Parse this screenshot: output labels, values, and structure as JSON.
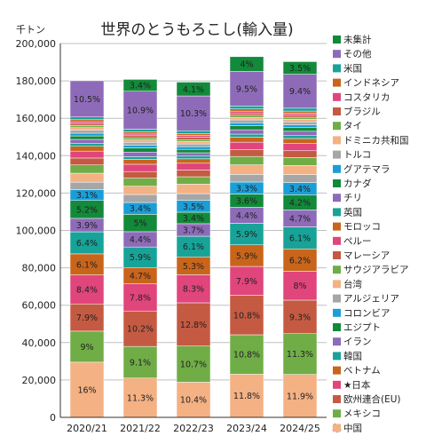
{
  "chart_data": {
    "type": "bar",
    "stacked": true,
    "title": "世界のとうもろこし(輸入量)",
    "unit": "千トン",
    "xunit": "年",
    "ylim": [
      0,
      200000
    ],
    "yticks": [
      "0",
      "20,000",
      "40,000",
      "60,000",
      "80,000",
      "100,000",
      "120,000",
      "140,000",
      "160,000",
      "180,000",
      "200,000"
    ],
    "grid": true,
    "legend_position": "right",
    "categories": [
      "2020/21",
      "2021/22",
      "2022/23",
      "2023/24",
      "2024/25"
    ],
    "totals": [
      184500,
      186000,
      180800,
      195500,
      193000
    ],
    "series": [
      {
        "name": "中国",
        "color": "#f4b183",
        "percent": [
          16,
          11.3,
          10.4,
          11.8,
          11.9
        ],
        "show_label": true
      },
      {
        "name": "メキシコ",
        "color": "#70ad47",
        "percent": [
          9,
          9.1,
          10.7,
          10.8,
          11.3
        ],
        "show_label": true
      },
      {
        "name": "欧州連合(EU)",
        "color": "#c55a42",
        "percent": [
          7.9,
          10.2,
          12.8,
          10.8,
          9.3
        ],
        "show_label": true
      },
      {
        "name": "★日本",
        "color": "#e0457b",
        "percent": [
          8.4,
          7.8,
          8.3,
          7.9,
          8
        ],
        "show_label": true
      },
      {
        "name": "ベトナム",
        "color": "#c8651b",
        "percent": [
          6.1,
          4.7,
          5.3,
          5.9,
          6.2
        ],
        "show_label": true
      },
      {
        "name": "韓国",
        "color": "#17a398",
        "percent": [
          6.4,
          5.9,
          6.1,
          5.9,
          6.1
        ],
        "show_label": true
      },
      {
        "name": "イラン",
        "color": "#8e6bb8",
        "percent": [
          3.9,
          4.4,
          3.7,
          4.4,
          4.7
        ],
        "show_label": true
      },
      {
        "name": "エジプト",
        "color": "#128a3a",
        "percent": [
          5.2,
          5,
          3.4,
          3.6,
          4.2
        ],
        "show_label": true
      },
      {
        "name": "コロンビア",
        "color": "#1a9ed8",
        "percent": [
          3.1,
          3.4,
          3.5,
          3.3,
          3.4
        ],
        "show_label": true
      },
      {
        "name": "アルジェリア",
        "color": "#a6a6a6",
        "percent": [
          2.2,
          2.3,
          2.0,
          2.1,
          2.2
        ],
        "show_label": false
      },
      {
        "name": "台湾",
        "color": "#f4b183",
        "percent": [
          2.6,
          2.4,
          2.8,
          2.6,
          2.5
        ],
        "show_label": false
      },
      {
        "name": "サウジアラビア",
        "color": "#70ad47",
        "percent": [
          2.4,
          2.3,
          2.2,
          2.3,
          2.2
        ],
        "show_label": false
      },
      {
        "name": "マレーシア",
        "color": "#c55a42",
        "percent": [
          2.0,
          1.9,
          2.0,
          1.9,
          1.9
        ],
        "show_label": false
      },
      {
        "name": "ペルー",
        "color": "#e0457b",
        "percent": [
          2.0,
          2.1,
          2.0,
          2.0,
          2.0
        ],
        "show_label": false
      },
      {
        "name": "モロッコ",
        "color": "#c8651b",
        "percent": [
          1.4,
          1.4,
          1.3,
          1.4,
          1.4
        ],
        "show_label": false
      },
      {
        "name": "英国",
        "color": "#17a398",
        "percent": [
          0.8,
          0.8,
          0.8,
          0.8,
          0.8
        ],
        "show_label": false
      },
      {
        "name": "チリ",
        "color": "#8e6bb8",
        "percent": [
          1.2,
          1.3,
          1.0,
          1.2,
          1.2
        ],
        "show_label": false
      },
      {
        "name": "カナダ",
        "color": "#128a3a",
        "percent": [
          1.0,
          1.2,
          1.0,
          1.1,
          1.0
        ],
        "show_label": false
      },
      {
        "name": "グアテマラ",
        "color": "#1a9ed8",
        "percent": [
          0.8,
          0.8,
          0.8,
          0.8,
          0.8
        ],
        "show_label": false
      },
      {
        "name": "トルコ",
        "color": "#a6a6a6",
        "percent": [
          0.9,
          0.8,
          0.8,
          0.8,
          0.8
        ],
        "show_label": false
      },
      {
        "name": "ドミニカ共和国",
        "color": "#f4b183",
        "percent": [
          0.7,
          0.7,
          0.7,
          0.7,
          0.7
        ],
        "show_label": false
      },
      {
        "name": "タイ",
        "color": "#70ad47",
        "percent": [
          0.6,
          0.6,
          0.6,
          0.6,
          0.6
        ],
        "show_label": false
      },
      {
        "name": "ブラジル",
        "color": "#c55a42",
        "percent": [
          0.6,
          0.6,
          0.7,
          0.6,
          0.6
        ],
        "show_label": false
      },
      {
        "name": "コスタリカ",
        "color": "#e0457b",
        "percent": [
          0.5,
          0.5,
          0.5,
          0.5,
          0.5
        ],
        "show_label": false
      },
      {
        "name": "インドネシア",
        "color": "#c8651b",
        "percent": [
          0.6,
          0.6,
          0.6,
          0.6,
          0.6
        ],
        "show_label": false
      },
      {
        "name": "米国",
        "color": "#17a398",
        "percent": [
          0.8,
          0.8,
          0.8,
          0.8,
          0.8
        ],
        "show_label": false
      },
      {
        "name": "その他",
        "color": "#8e6bb8",
        "percent": [
          10.5,
          10.9,
          10.3,
          9.5,
          9.4
        ],
        "show_label": true
      },
      {
        "name": "未集計",
        "color": "#128a3a",
        "percent": [
          0,
          3.4,
          4.1,
          4,
          3.5
        ],
        "show_label": true
      }
    ]
  }
}
